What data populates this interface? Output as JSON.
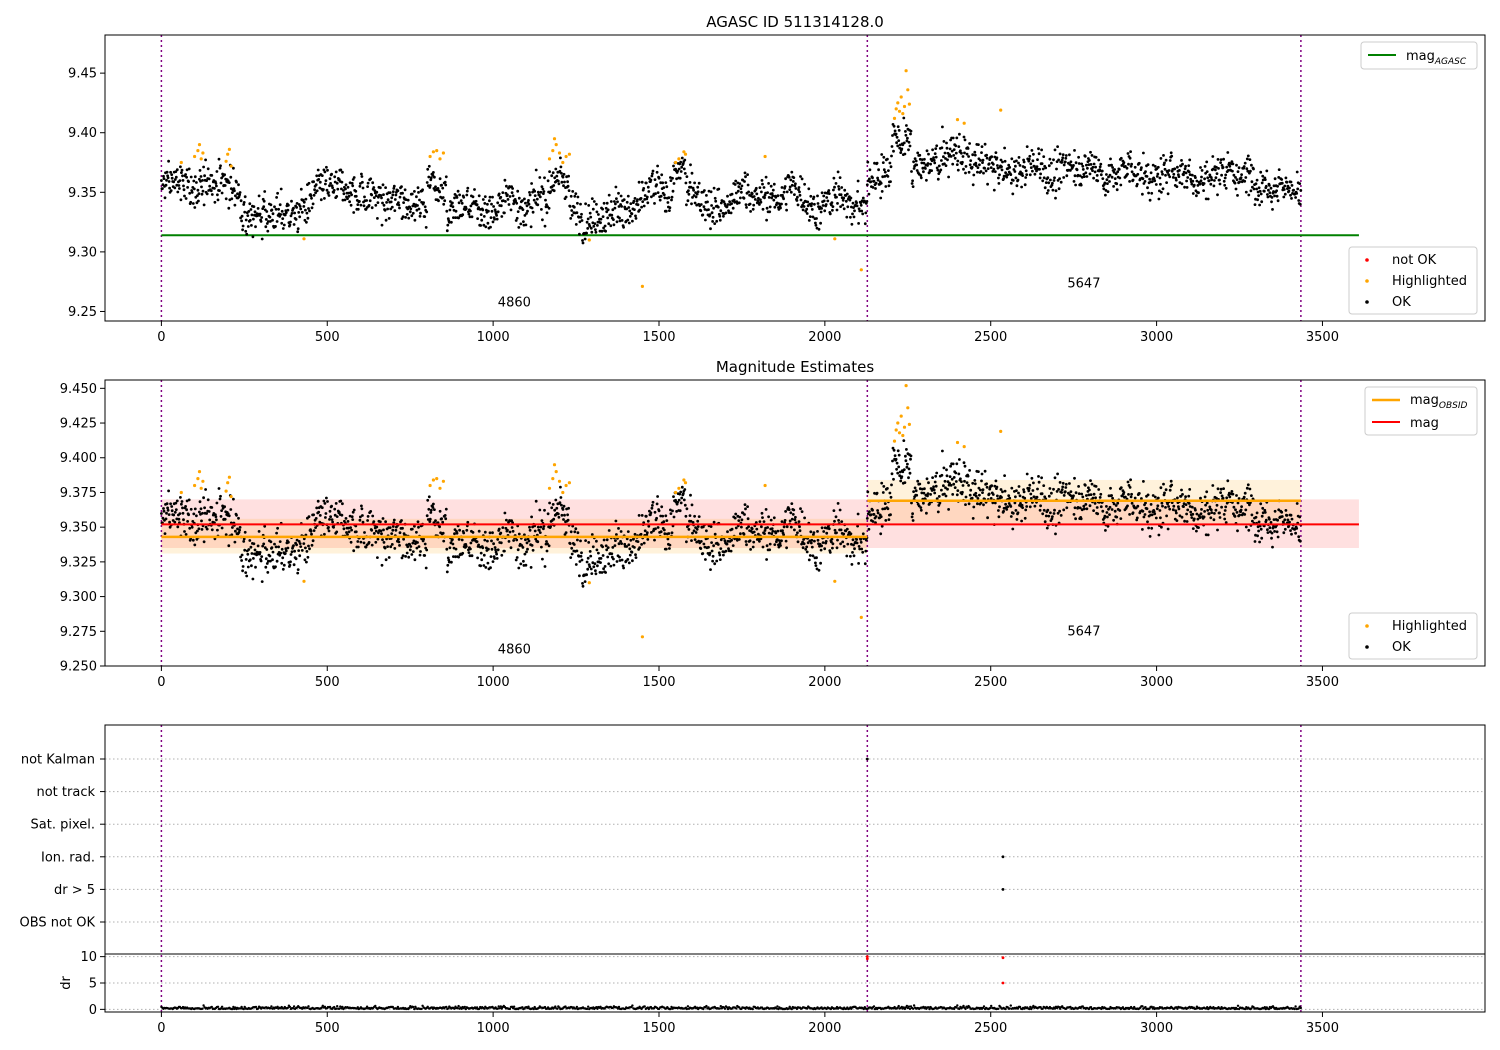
{
  "chart_data": [
    {
      "type": "scatter",
      "title": "AGASC ID 511314128.0",
      "xlim": [
        -170,
        3990
      ],
      "ylim": [
        9.242,
        9.482
      ],
      "xticks": [
        0,
        500,
        1000,
        1500,
        2000,
        2500,
        3000,
        3500
      ],
      "yticks": [
        9.25,
        9.3,
        9.35,
        9.4,
        9.45
      ],
      "ytick_labels": [
        "9.25",
        "9.30",
        "9.35",
        "9.40",
        "9.45"
      ],
      "vlines": [
        0,
        2128,
        3435
      ],
      "obsid_labels": [
        {
          "text": "4860",
          "x": 1064,
          "y": 9.254
        },
        {
          "text": "5647",
          "x": 2781,
          "y": 9.27
        }
      ],
      "lines": [
        {
          "name": "magAGASC",
          "y": 9.314,
          "x": [
            0,
            3610
          ],
          "color": "#008000"
        }
      ],
      "legend_upper": {
        "position": "top-right",
        "entries": [
          {
            "label": "mag",
            "sub": "AGASC",
            "color": "#008000"
          }
        ]
      },
      "legend_lower": {
        "position": "bottom-right",
        "entries": [
          {
            "label": "not OK",
            "color": "#ff0000"
          },
          {
            "label": "Highlighted",
            "color": "#ffa500"
          },
          {
            "label": "OK",
            "color": "#000000"
          }
        ]
      },
      "segments": [
        {
          "x": [
            0,
            2128
          ],
          "base": 9.343
        },
        {
          "x": [
            2128,
            3435
          ],
          "base": 9.368
        }
      ],
      "highlighted": [
        [
          60,
          9.375
        ],
        [
          100,
          9.38
        ],
        [
          110,
          9.385
        ],
        [
          115,
          9.39
        ],
        [
          120,
          9.378
        ],
        [
          125,
          9.383
        ],
        [
          195,
          9.376
        ],
        [
          200,
          9.382
        ],
        [
          205,
          9.386
        ],
        [
          210,
          9.372
        ],
        [
          430,
          9.311
        ],
        [
          810,
          9.38
        ],
        [
          820,
          9.384
        ],
        [
          830,
          9.385
        ],
        [
          840,
          9.378
        ],
        [
          850,
          9.383
        ],
        [
          1170,
          9.378
        ],
        [
          1180,
          9.385
        ],
        [
          1185,
          9.395
        ],
        [
          1190,
          9.39
        ],
        [
          1200,
          9.383
        ],
        [
          1210,
          9.375
        ],
        [
          1220,
          9.38
        ],
        [
          1230,
          9.382
        ],
        [
          1290,
          9.31
        ],
        [
          1450,
          9.271
        ],
        [
          1550,
          9.375
        ],
        [
          1560,
          9.378
        ],
        [
          1575,
          9.384
        ],
        [
          1580,
          9.382
        ],
        [
          1820,
          9.38
        ],
        [
          2030,
          9.311
        ],
        [
          2110,
          9.285
        ],
        [
          2210,
          9.412
        ],
        [
          2215,
          9.42
        ],
        [
          2220,
          9.425
        ],
        [
          2225,
          9.418
        ],
        [
          2230,
          9.43
        ],
        [
          2235,
          9.416
        ],
        [
          2240,
          9.422
        ],
        [
          2245,
          9.452
        ],
        [
          2250,
          9.436
        ],
        [
          2255,
          9.424
        ],
        [
          2400,
          9.411
        ],
        [
          2420,
          9.408
        ],
        [
          2530,
          9.419
        ]
      ],
      "not_ok": []
    },
    {
      "type": "scatter",
      "title": "Magnitude Estimates",
      "xlim": [
        -170,
        3990
      ],
      "ylim": [
        9.25,
        9.456
      ],
      "xticks": [
        0,
        500,
        1000,
        1500,
        2000,
        2500,
        3000,
        3500
      ],
      "yticks": [
        9.25,
        9.275,
        9.3,
        9.325,
        9.35,
        9.375,
        9.4,
        9.425,
        9.45
      ],
      "ytick_labels": [
        "9.250",
        "9.275",
        "9.300",
        "9.325",
        "9.350",
        "9.375",
        "9.400",
        "9.425",
        "9.450"
      ],
      "vlines": [
        0,
        2128,
        3435
      ],
      "obsid_labels": [
        {
          "text": "4860",
          "x": 1064,
          "y": 9.259
        },
        {
          "text": "5647",
          "x": 2781,
          "y": 9.272
        }
      ],
      "mag": {
        "y": 9.352,
        "band": [
          9.335,
          9.37
        ],
        "x": [
          0,
          3610
        ],
        "color": "#ff0000"
      },
      "mag_obsid": [
        {
          "x": [
            0,
            2128
          ],
          "y": 9.343,
          "band": [
            9.331,
            9.356
          ]
        },
        {
          "x": [
            2128,
            3435
          ],
          "y": 9.369,
          "band": [
            9.353,
            9.384
          ]
        }
      ],
      "legend_upper": {
        "position": "top-right",
        "entries": [
          {
            "label": "mag",
            "sub": "OBSID",
            "color": "#ffa500"
          },
          {
            "label": "mag",
            "sub": "",
            "color": "#ff0000"
          }
        ]
      },
      "legend_lower": {
        "position": "bottom-right",
        "entries": [
          {
            "label": "Highlighted",
            "color": "#ffa500"
          },
          {
            "label": "OK",
            "color": "#000000"
          }
        ]
      }
    },
    {
      "type": "scatter",
      "xlim": [
        -170,
        3990
      ],
      "xticks": [
        0,
        500,
        1000,
        1500,
        2000,
        2500,
        3000,
        3500
      ],
      "vlines": [
        0,
        2128,
        3435
      ],
      "flag_rows": [
        "not Kalman",
        "not track",
        "Sat. pixel.",
        "Ion. rad.",
        "dr > 5",
        "OBS not OK"
      ],
      "flag_points": [
        {
          "row": "not Kalman",
          "x": 2128
        },
        {
          "row": "Ion. rad.",
          "x": 2537
        },
        {
          "row": "dr > 5",
          "x": 2537
        }
      ],
      "dr": {
        "ylabel": "dr",
        "ylim": [
          -0.5,
          10.5
        ],
        "yticks": [
          0,
          5,
          10
        ],
        "high_points": [
          [
            2128,
            9.6
          ],
          [
            2128,
            10.0
          ],
          [
            2537,
            9.8
          ],
          [
            2537,
            5.0
          ]
        ]
      }
    }
  ]
}
